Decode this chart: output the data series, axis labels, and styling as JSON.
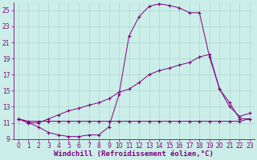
{
  "xlabel": "Windchill (Refroidissement éolien,°C)",
  "bg_color": "#cceee8",
  "line_color": "#800080",
  "grid_color": "#aad8d0",
  "xlim": [
    -0.5,
    23.5
  ],
  "ylim": [
    9,
    26
  ],
  "xticks": [
    0,
    1,
    2,
    3,
    4,
    5,
    6,
    7,
    8,
    9,
    10,
    11,
    12,
    13,
    14,
    15,
    16,
    17,
    18,
    19,
    20,
    21,
    22,
    23
  ],
  "yticks": [
    9,
    11,
    13,
    15,
    17,
    19,
    21,
    23,
    25
  ],
  "series1_x": [
    0,
    1,
    2,
    3,
    4,
    5,
    6,
    7,
    8,
    9,
    10,
    11,
    12,
    13,
    14,
    15,
    16,
    17,
    18,
    19,
    20,
    21,
    22,
    23
  ],
  "series1_y": [
    11.5,
    11.0,
    10.5,
    9.8,
    9.5,
    9.3,
    9.3,
    9.5,
    9.5,
    10.5,
    14.5,
    21.8,
    24.2,
    25.5,
    25.8,
    25.6,
    25.3,
    24.7,
    24.7,
    19.2,
    15.2,
    13.0,
    11.8,
    12.2
  ],
  "series2_x": [
    0,
    1,
    2,
    3,
    4,
    5,
    6,
    7,
    8,
    9,
    10,
    11,
    12,
    13,
    14,
    15,
    16,
    17,
    18,
    19,
    20,
    21,
    22,
    23
  ],
  "series2_y": [
    11.5,
    11.0,
    11.0,
    11.5,
    12.0,
    12.5,
    12.8,
    13.2,
    13.5,
    14.0,
    14.8,
    15.2,
    16.0,
    17.0,
    17.5,
    17.8,
    18.2,
    18.5,
    19.2,
    19.5,
    15.2,
    13.5,
    11.5,
    11.5
  ],
  "series3_x": [
    0,
    1,
    2,
    3,
    4,
    5,
    6,
    7,
    8,
    9,
    10,
    11,
    12,
    13,
    14,
    15,
    16,
    17,
    18,
    19,
    20,
    21,
    22,
    23
  ],
  "series3_y": [
    11.5,
    11.2,
    11.2,
    11.2,
    11.2,
    11.2,
    11.2,
    11.2,
    11.2,
    11.2,
    11.2,
    11.2,
    11.2,
    11.2,
    11.2,
    11.2,
    11.2,
    11.2,
    11.2,
    11.2,
    11.2,
    11.2,
    11.2,
    11.5
  ],
  "tick_fontsize": 5.5,
  "xlabel_fontsize": 6.5
}
